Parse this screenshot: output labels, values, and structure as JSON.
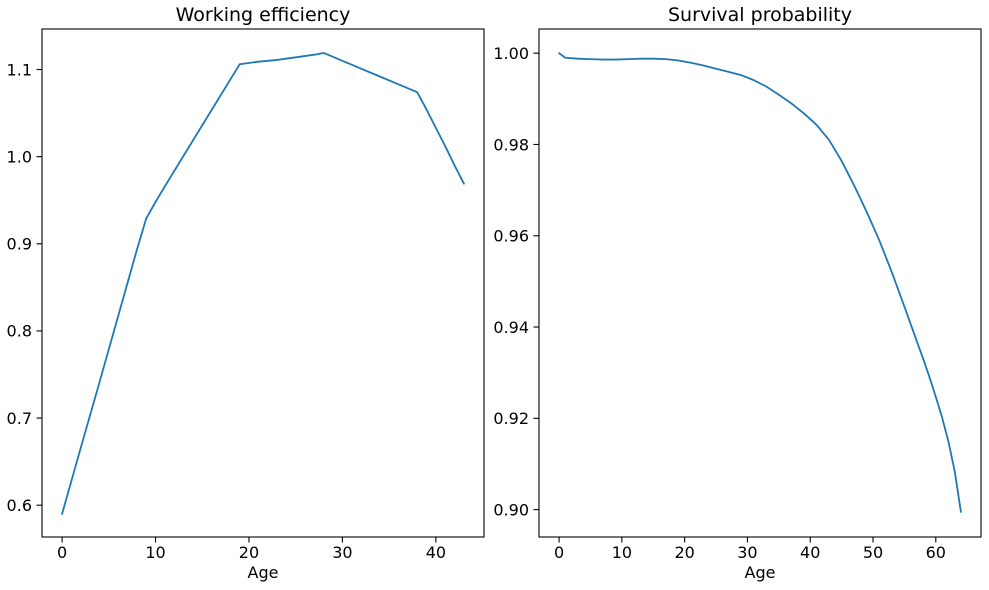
{
  "figure": {
    "background": "#ffffff",
    "text_color": "#000000",
    "spine_color": "#000000"
  },
  "chart_data": [
    {
      "type": "line",
      "title": "Working efficiency",
      "xlabel": "Age",
      "ylabel": "",
      "grid": false,
      "legend": "none",
      "line_color": "#1f77b4",
      "xlim": [
        -2.15,
        45.15
      ],
      "ylim": [
        0.5635,
        1.1465
      ],
      "xtick_values": [
        0,
        10,
        20,
        30,
        40
      ],
      "xtick_labels": [
        "0",
        "10",
        "20",
        "30",
        "40"
      ],
      "ytick_values": [
        0.6,
        0.7,
        0.8,
        0.9,
        1.0,
        1.1
      ],
      "ytick_labels": [
        "0.6",
        "0.7",
        "0.8",
        "0.9",
        "1.0",
        "1.1"
      ],
      "series": [
        {
          "name": "working-efficiency-by-age",
          "x": [
            0,
            2,
            4,
            6,
            8,
            9,
            10,
            11,
            13,
            15,
            17,
            19,
            21,
            23,
            25,
            27,
            28,
            30,
            32,
            34,
            36,
            38,
            39,
            40,
            41,
            42,
            43
          ],
          "y": [
            0.59,
            0.666,
            0.741,
            0.817,
            0.893,
            0.929,
            0.948,
            0.966,
            1.001,
            1.036,
            1.071,
            1.106,
            1.109,
            1.111,
            1.114,
            1.117,
            1.119,
            1.11,
            1.101,
            1.092,
            1.083,
            1.074,
            1.054,
            1.033,
            1.012,
            0.99,
            0.969
          ]
        }
      ]
    },
    {
      "type": "line",
      "title": "Survival probability",
      "xlabel": "Age",
      "ylabel": "",
      "grid": false,
      "legend": "none",
      "line_color": "#1f77b4",
      "xlim": [
        -3.2,
        67.2
      ],
      "ylim": [
        0.894,
        1.0053
      ],
      "xtick_values": [
        0,
        10,
        20,
        30,
        40,
        50,
        60
      ],
      "xtick_labels": [
        "0",
        "10",
        "20",
        "30",
        "40",
        "50",
        "60"
      ],
      "ytick_values": [
        0.9,
        0.92,
        0.94,
        0.96,
        0.98,
        1.0
      ],
      "ytick_labels": [
        "0.90",
        "0.92",
        "0.94",
        "0.96",
        "0.98",
        "1.00"
      ],
      "series": [
        {
          "name": "survival-probability-by-age",
          "x": [
            0,
            1,
            3,
            5,
            7,
            9,
            11,
            13,
            15,
            17,
            19,
            21,
            23,
            25,
            27,
            29,
            31,
            33,
            35,
            37,
            39,
            41,
            43,
            45,
            47,
            49,
            51,
            53,
            55,
            57,
            58,
            59,
            60,
            61,
            62,
            63,
            64
          ],
          "y": [
            1.0,
            0.999,
            0.9988,
            0.9987,
            0.9986,
            0.9986,
            0.9987,
            0.9988,
            0.9988,
            0.9987,
            0.9984,
            0.9979,
            0.9973,
            0.9966,
            0.9959,
            0.9952,
            0.9941,
            0.9927,
            0.9909,
            0.989,
            0.9868,
            0.9843,
            0.981,
            0.9764,
            0.971,
            0.9652,
            0.959,
            0.952,
            0.9445,
            0.9368,
            0.933,
            0.929,
            0.9247,
            0.9202,
            0.915,
            0.9085,
            0.8995
          ]
        }
      ]
    }
  ]
}
